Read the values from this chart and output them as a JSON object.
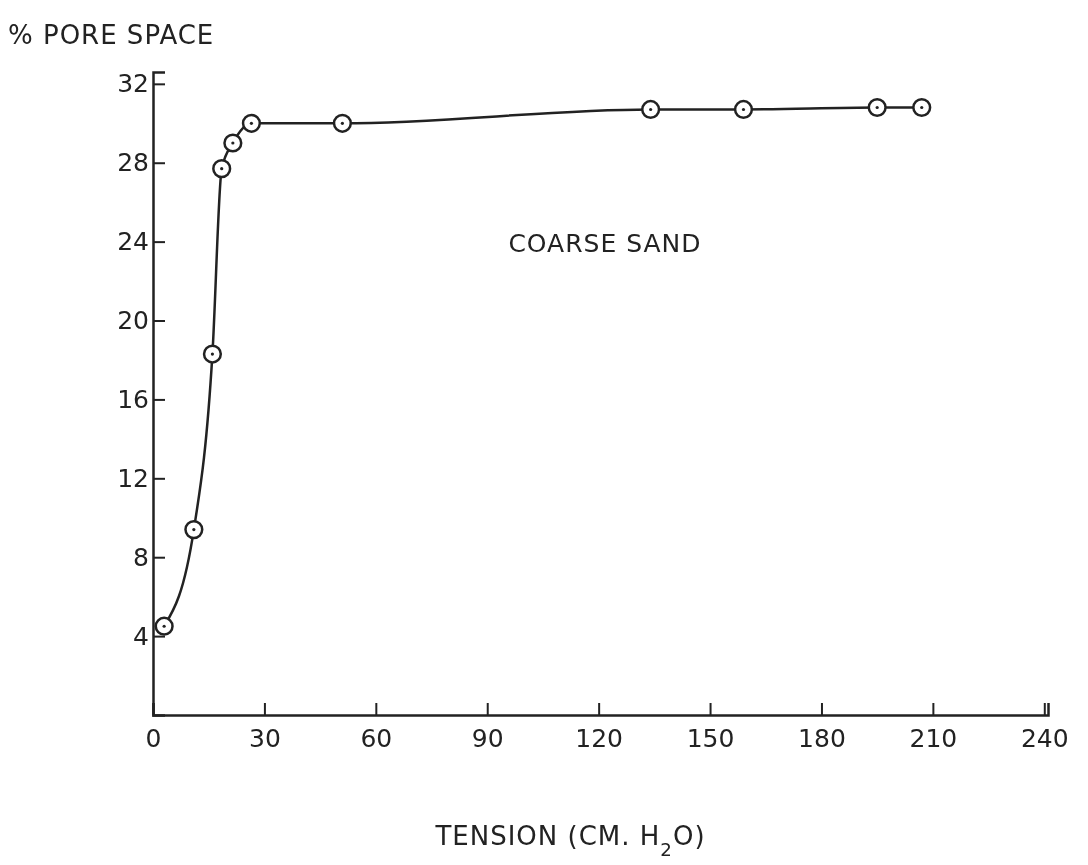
{
  "chart_data": {
    "type": "line",
    "xlabel": "TENSION (CM. H$_{2}$O)",
    "ylabel": "% PORE SPACE",
    "xlim": [
      0,
      241
    ],
    "ylim": [
      0,
      32.6
    ],
    "xticks": [
      0,
      30,
      60,
      90,
      120,
      150,
      180,
      210,
      240
    ],
    "yticks": [
      4,
      8,
      12,
      16,
      20,
      24,
      28,
      32
    ],
    "marker": "circle",
    "line_style": "solid",
    "grid": false,
    "legend": false,
    "series": [
      {
        "name": "COARSE SAND",
        "color": "#222222",
        "x": [
          3,
          11,
          16,
          18.5,
          21.5,
          26.5,
          51,
          134,
          159,
          195,
          207
        ],
        "values": [
          4.5,
          9.4,
          18.3,
          27.7,
          29.0,
          30.0,
          30.0,
          30.7,
          30.7,
          30.8,
          30.8
        ]
      }
    ]
  }
}
